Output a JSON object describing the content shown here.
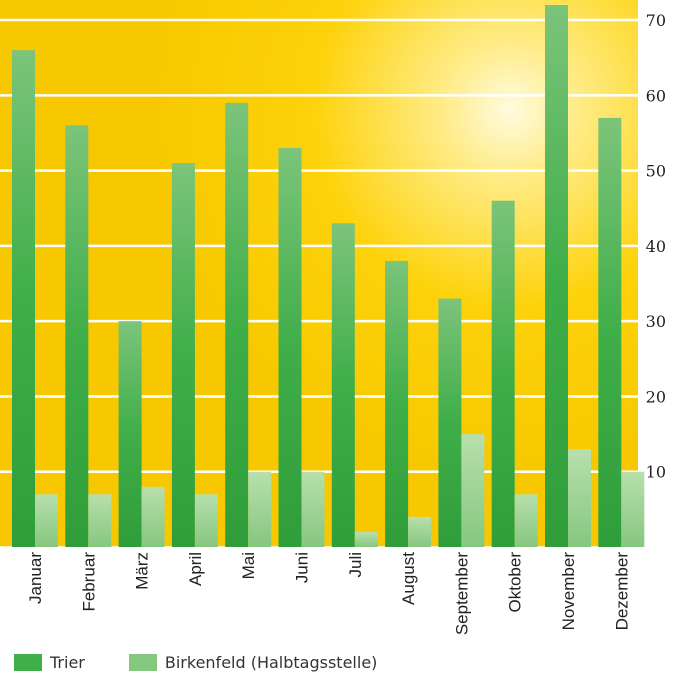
{
  "chart_data": {
    "type": "bar",
    "categories": [
      "Januar",
      "Februar",
      "März",
      "April",
      "Mai",
      "Juni",
      "Juli",
      "August",
      "September",
      "Oktober",
      "November",
      "Dezember"
    ],
    "series": [
      {
        "name": "Trier",
        "values": [
          66,
          56,
          30,
          51,
          59,
          53,
          43,
          38,
          33,
          46,
          72,
          57
        ],
        "color": "#3fae49"
      },
      {
        "name": "Birkenfeld (Halbtagsstelle)",
        "values": [
          7,
          7,
          8,
          7,
          10,
          10,
          2,
          4,
          15,
          7,
          13,
          10
        ],
        "color": "#86c77f"
      }
    ],
    "ylim": [
      0,
      72
    ],
    "yticks": [
      10,
      20,
      30,
      40,
      50,
      60,
      70
    ],
    "grid": true,
    "legend_position": "bottom-left",
    "background_colors": [
      "#fdd20a",
      "#fffbe0"
    ]
  }
}
